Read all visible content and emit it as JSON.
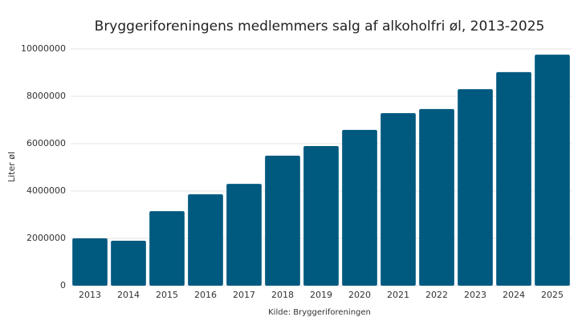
{
  "chart_data": {
    "type": "bar",
    "title": "Bryggeriforeningens medlemmers salg af alkoholfri øl, 2013-2025",
    "y_label": "Liter øl",
    "source": "Kilde: Bryggeriforeningen",
    "categories": [
      "2013",
      "2014",
      "2015",
      "2016",
      "2017",
      "2018",
      "2019",
      "2020",
      "2021",
      "2022",
      "2023",
      "2024",
      "2025"
    ],
    "values": [
      2000000,
      1900000,
      3150000,
      3860000,
      4300000,
      5490000,
      5900000,
      6580000,
      7290000,
      7460000,
      8300000,
      9020000,
      9760000
    ],
    "color": "#00597f",
    "ylim": [
      0,
      10000000
    ],
    "yticks": [
      0,
      2000000,
      4000000,
      6000000,
      8000000,
      10000000
    ],
    "grid": true
  }
}
